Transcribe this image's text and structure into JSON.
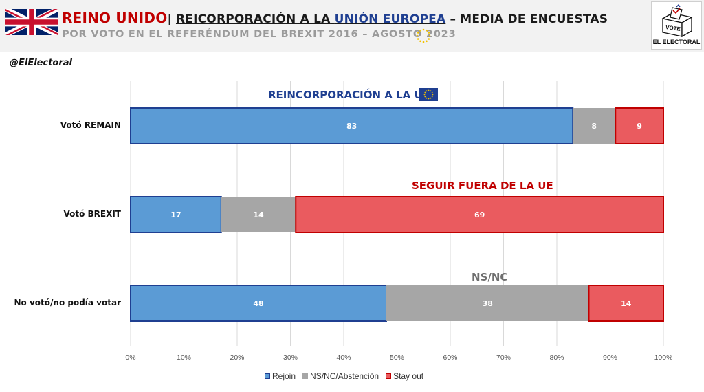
{
  "header": {
    "country": "REINO UNIDO",
    "separator": "|",
    "title_a": "REICORPORACIÓN A LA",
    "title_highlight": "UNIÓN EUROPEA",
    "title_b": "– MEDIA DE ENCUESTAS",
    "subtitle": "POR VOTO EN EL REFERÉNDUM DEL BREXIT 2016 – AGOSTO 2023",
    "logo_text": "EL ELECTORAL",
    "logo_ballot_text": "VOTE",
    "handle": "@ElElectoral"
  },
  "colors": {
    "rejoin": "#5b9bd5",
    "rejoin_border": "#1f3f91",
    "ns": "#a6a6a6",
    "stay_out": "#ea5b5f",
    "stay_out_border": "#c00000"
  },
  "annotations": {
    "rejoin": "REINCORPORACIÓN A LA UE",
    "stay_out": "SEGUIR FUERA DE LA UE",
    "ns": "NS/NC"
  },
  "chart_data": {
    "type": "bar",
    "orientation": "horizontal",
    "stacked": true,
    "categories": [
      "Votó REMAIN",
      "Votó BREXIT",
      "No votó/no podía votar"
    ],
    "series": [
      {
        "name": "Rejoin",
        "values": [
          83,
          17,
          48
        ]
      },
      {
        "name": "NS/NC/Abstención",
        "values": [
          8,
          14,
          38
        ]
      },
      {
        "name": "Stay out",
        "values": [
          9,
          69,
          14
        ]
      }
    ],
    "xlim": [
      0,
      100
    ],
    "x_ticks": [
      "0%",
      "10%",
      "20%",
      "30%",
      "40%",
      "50%",
      "60%",
      "70%",
      "80%",
      "90%",
      "100%"
    ],
    "grid": "vertical",
    "legend_position": "bottom"
  }
}
